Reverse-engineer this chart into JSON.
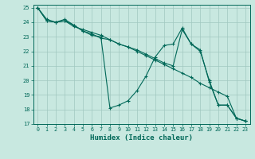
{
  "xlabel": "Humidex (Indice chaleur)",
  "xlim": [
    -0.5,
    23.5
  ],
  "ylim": [
    17,
    25.2
  ],
  "xticks": [
    0,
    1,
    2,
    3,
    4,
    5,
    6,
    7,
    8,
    9,
    10,
    11,
    12,
    13,
    14,
    15,
    16,
    17,
    18,
    19,
    20,
    21,
    22,
    23
  ],
  "yticks": [
    17,
    18,
    19,
    20,
    21,
    22,
    23,
    24,
    25
  ],
  "bg_color": "#c8e8e0",
  "grid_color": "#a0c8c0",
  "line_color": "#006858",
  "lines": [
    {
      "x": [
        0,
        1,
        2,
        3,
        4,
        5,
        6,
        7,
        8,
        9,
        10,
        11,
        12,
        13,
        14,
        15,
        16,
        17,
        18,
        19,
        20,
        21,
        22,
        23
      ],
      "y": [
        25,
        24.2,
        24.0,
        24.1,
        23.7,
        23.5,
        23.3,
        23.1,
        22.8,
        22.5,
        22.3,
        22.0,
        21.7,
        21.4,
        21.1,
        20.8,
        20.5,
        20.2,
        19.8,
        19.5,
        19.2,
        18.9,
        17.4,
        17.2
      ]
    },
    {
      "x": [
        0,
        1,
        2,
        3,
        4,
        5,
        6,
        7,
        8,
        9,
        10,
        11,
        12,
        13,
        14,
        15,
        16,
        17,
        18,
        19,
        20,
        21,
        22,
        23
      ],
      "y": [
        25,
        24.1,
        24.0,
        24.2,
        23.8,
        23.4,
        23.1,
        23.0,
        18.1,
        18.3,
        18.6,
        19.3,
        20.3,
        21.6,
        22.4,
        22.5,
        23.6,
        22.5,
        22.1,
        19.9,
        18.3,
        18.3,
        17.4,
        17.2
      ]
    },
    {
      "x": [
        0,
        1,
        2,
        3,
        4,
        5,
        6,
        7,
        8,
        9,
        10,
        11,
        12,
        13,
        14,
        15,
        16,
        17,
        18,
        19,
        20,
        21,
        22,
        23
      ],
      "y": [
        25,
        24.1,
        24.0,
        24.1,
        23.8,
        23.4,
        23.2,
        22.9,
        22.8,
        22.5,
        22.3,
        22.1,
        21.8,
        21.5,
        21.2,
        21.0,
        23.5,
        22.5,
        22.0,
        20.0,
        18.3,
        18.3,
        17.4,
        17.2
      ]
    }
  ]
}
